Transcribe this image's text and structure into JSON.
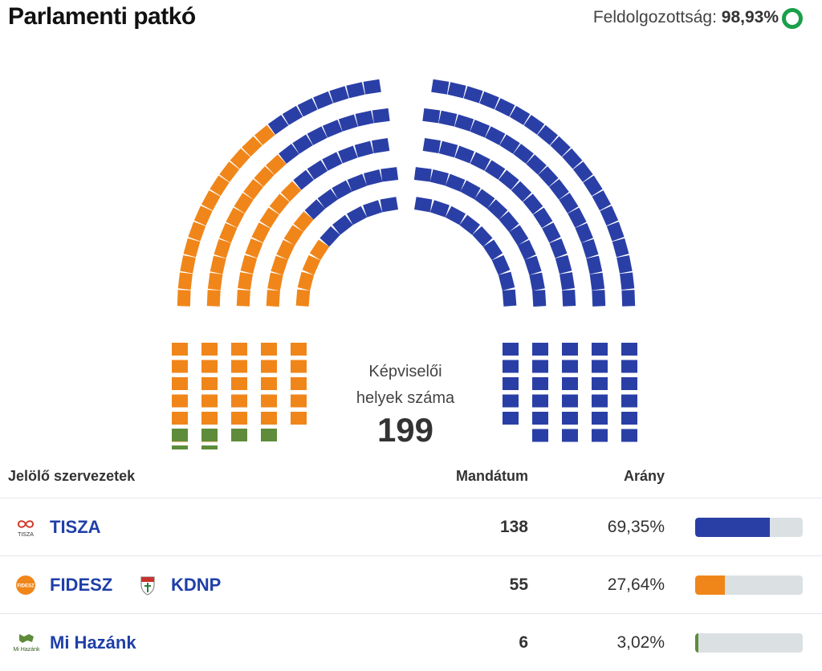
{
  "header": {
    "title": "Parlamenti patkó",
    "progress_label": "Feldolgozottság:",
    "progress_value": "98,93%"
  },
  "center": {
    "label_line1": "Képviselői",
    "label_line2": "helyek száma",
    "total": "199"
  },
  "table": {
    "col_name": "Jelölő szervezetek",
    "col_seats": "Mandátum",
    "col_ratio": "Arány"
  },
  "chart_data": {
    "type": "parliament",
    "total_seats": 199,
    "series": [
      {
        "name": "TISZA",
        "seats": 138,
        "share": 69.35,
        "share_label": "69,35%",
        "color": "#2a3fa6",
        "side": "right"
      },
      {
        "name": "FIDESZ",
        "partner": "KDNP",
        "seats": 55,
        "share": 27.64,
        "share_label": "27,64%",
        "color": "#f0861a",
        "side": "left"
      },
      {
        "name": "Mi Hazánk",
        "seats": 6,
        "share": 3.02,
        "share_label": "3,02%",
        "color": "#5e8c3a",
        "side": "left"
      }
    ]
  },
  "logos": {
    "tisza": "TISZA",
    "fidesz": "FIDESZ",
    "mihazank": "Mi Hazánk"
  },
  "icons": [
    "progress-ring-icon",
    "tisza-logo-icon",
    "fidesz-logo-icon",
    "kdnp-logo-icon",
    "mihazank-logo-icon"
  ]
}
